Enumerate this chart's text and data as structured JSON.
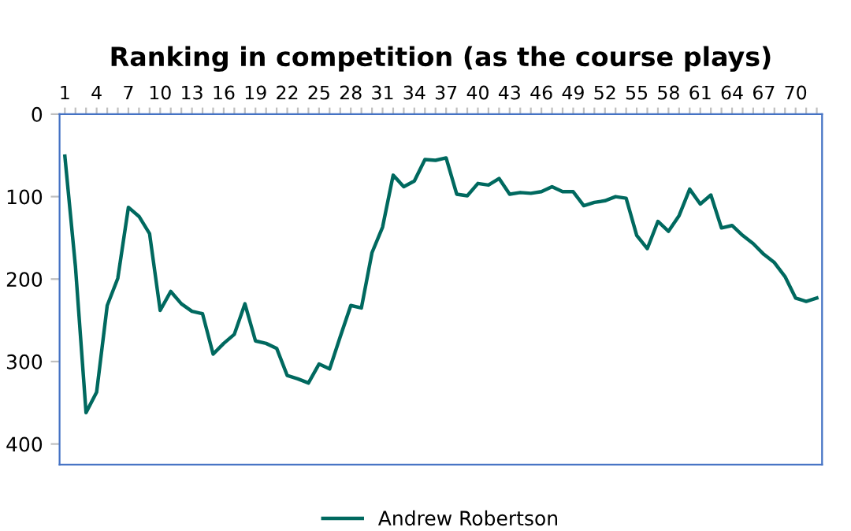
{
  "chart_data": {
    "type": "line",
    "title": "Ranking in competition (as the course plays)",
    "categories": [
      "1",
      null,
      null,
      "4",
      null,
      null,
      "7",
      null,
      null,
      "10",
      null,
      null,
      "13",
      null,
      null,
      "16",
      null,
      null,
      "19",
      null,
      null,
      "22",
      null,
      null,
      "25",
      null,
      null,
      "28",
      null,
      null,
      "31",
      null,
      null,
      "34",
      null,
      null,
      "37",
      null,
      null,
      "40",
      null,
      null,
      "43",
      null,
      null,
      "46",
      null,
      null,
      "49",
      null,
      null,
      "52",
      null,
      null,
      "55",
      null,
      null,
      "58",
      null,
      null,
      "61",
      null,
      null,
      "64",
      null,
      null,
      "67",
      null,
      null,
      "70",
      null,
      null
    ],
    "series": [
      {
        "name": "Andrew Robertson",
        "color": "#00695f",
        "values": [
          51,
          185,
          362,
          337,
          232,
          199,
          113,
          124,
          145,
          238,
          215,
          230,
          239,
          242,
          291,
          278,
          267,
          230,
          275,
          278,
          284,
          317,
          321,
          326,
          303,
          309,
          270,
          232,
          235,
          168,
          137,
          74,
          88,
          81,
          55,
          56,
          53,
          97,
          99,
          84,
          86,
          78,
          97,
          95,
          96,
          94,
          88,
          94,
          94,
          111,
          107,
          105,
          100,
          102,
          147,
          163,
          130,
          142,
          123,
          91,
          109,
          98,
          138,
          135,
          147,
          157,
          170,
          180,
          197,
          223,
          227,
          223
        ]
      }
    ],
    "ylim": [
      425,
      0
    ],
    "yticks": [
      0,
      100,
      200,
      300,
      400
    ],
    "grid": false,
    "legend": "bottom",
    "marker": "none",
    "line_style": "solid"
  }
}
